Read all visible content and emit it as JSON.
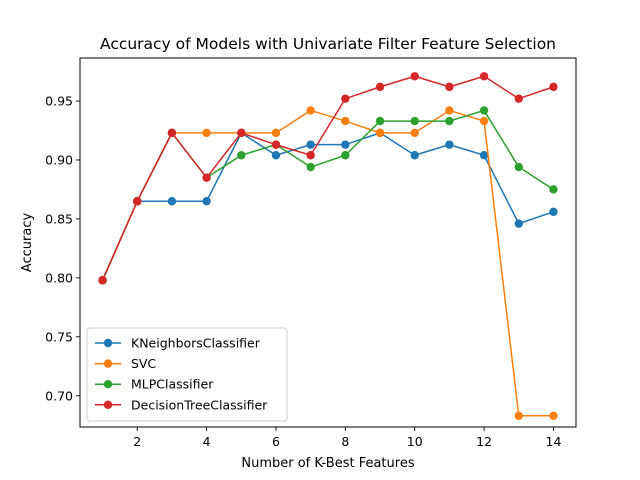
{
  "chart_data": {
    "type": "line",
    "title": "Accuracy of Models with Univariate Filter Feature Selection",
    "xlabel": "Number of K-Best Features",
    "ylabel": "Accuracy",
    "xlim": [
      0.35,
      14.65
    ],
    "ylim": [
      0.6735,
      0.9865
    ],
    "xticks": [
      2,
      4,
      6,
      8,
      10,
      12,
      14
    ],
    "yticks": [
      0.7,
      0.75,
      0.8,
      0.85,
      0.9,
      0.95
    ],
    "ytick_labels": [
      "0.70",
      "0.75",
      "0.80",
      "0.85",
      "0.90",
      "0.95"
    ],
    "grid": false,
    "legend_position": "lower-left",
    "x": [
      1,
      2,
      3,
      4,
      5,
      6,
      7,
      8,
      9,
      10,
      11,
      12,
      13,
      14
    ],
    "series": [
      {
        "name": "KNeighborsClassifier",
        "color": "#1f77b4",
        "values": [
          0.798,
          0.865,
          0.865,
          0.865,
          0.923,
          0.904,
          0.913,
          0.913,
          0.923,
          0.904,
          0.913,
          0.904,
          0.846,
          0.856
        ]
      },
      {
        "name": "SVC",
        "color": "#ff7f0e",
        "values": [
          0.798,
          0.865,
          0.923,
          0.923,
          0.923,
          0.923,
          0.942,
          0.933,
          0.923,
          0.923,
          0.942,
          0.933,
          0.683,
          0.683
        ]
      },
      {
        "name": "MLPClassifier",
        "color": "#2ca02c",
        "values": [
          0.798,
          0.865,
          0.923,
          0.885,
          0.904,
          0.913,
          0.894,
          0.904,
          0.933,
          0.933,
          0.933,
          0.942,
          0.894,
          0.875
        ]
      },
      {
        "name": "DecisionTreeClassifier",
        "color": "#d62728",
        "values": [
          0.798,
          0.865,
          0.923,
          0.885,
          0.923,
          0.913,
          0.904,
          0.952,
          0.962,
          0.971,
          0.962,
          0.971,
          0.952,
          0.962
        ]
      }
    ]
  }
}
